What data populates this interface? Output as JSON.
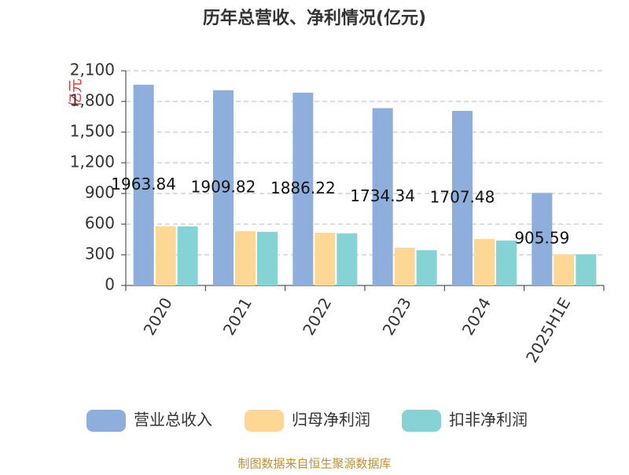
{
  "chart_data": {
    "type": "bar",
    "title": "历年总营收、净利情况(亿元)",
    "y_label": "亿元",
    "categories": [
      "2020",
      "2021",
      "2022",
      "2023",
      "2024",
      "2025H1E"
    ],
    "series": [
      {
        "name": "营业总收入",
        "color": "#8eaedb",
        "values": [
          1963.84,
          1909.82,
          1886.22,
          1734.34,
          1707.48,
          905.59
        ],
        "show_labels": true
      },
      {
        "name": "归母净利润",
        "color": "#fdd794",
        "values": [
          580,
          530,
          515,
          370,
          455,
          305
        ]
      },
      {
        "name": "扣非净利润",
        "color": "#86d3d6",
        "values": [
          578,
          525,
          510,
          345,
          440,
          305
        ]
      }
    ],
    "ylim": [
      0,
      2100
    ],
    "yticks": [
      0,
      300,
      600,
      900,
      {
        "value": 1200,
        "label": "1,200"
      },
      {
        "value": 1500,
        "label": "1,500"
      },
      {
        "value": 1800,
        "label": "1,800"
      },
      {
        "value": 2100,
        "label": "2,100"
      }
    ],
    "grid": true,
    "source": "制图数据来自恒生聚源数据库"
  }
}
